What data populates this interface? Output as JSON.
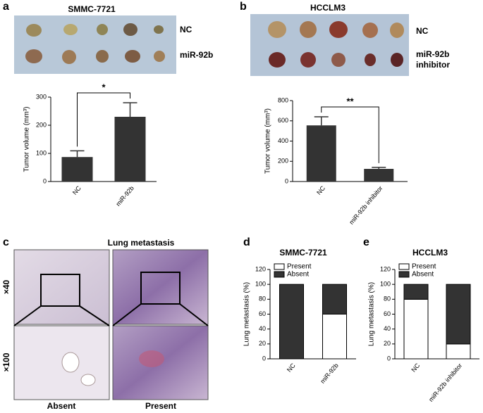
{
  "figure": {
    "panel_letters": [
      "a",
      "b",
      "c",
      "d",
      "e"
    ],
    "photo_a_labels": [
      "NC",
      "miR-92b"
    ],
    "photo_b_labels": [
      [
        "NC"
      ],
      [
        "miR-92b",
        "inhibitor"
      ]
    ],
    "histology_title": "Lung metastasis",
    "magnifications": [
      "×40",
      "×100"
    ],
    "histology_labels": [
      "Absent",
      "Present"
    ]
  },
  "chart_data": [
    {
      "type": "bar",
      "title": "SMMC-7721",
      "y_label": "Tumor volume (mm³)",
      "categories": [
        "NC",
        "miR-92b"
      ],
      "values": [
        87,
        230
      ],
      "errors": [
        22,
        50
      ],
      "color": "#333333",
      "ylim": [
        0,
        300
      ],
      "yticks": [
        0,
        100,
        200,
        300
      ],
      "significance": "*"
    },
    {
      "type": "bar",
      "title": "HCCLM3",
      "y_label": "Tumor volume (mm³)",
      "categories": [
        "NC",
        "miR-92b inhibitor"
      ],
      "values": [
        555,
        125
      ],
      "errors": [
        85,
        15
      ],
      "color": "#333333",
      "ylim": [
        0,
        800
      ],
      "yticks": [
        0,
        200,
        400,
        600,
        800
      ],
      "significance": "**"
    },
    {
      "type": "stacked_bar",
      "title": "SMMC-7721",
      "y_label": "Lung metastasis (%)",
      "categories": [
        "NC",
        "miR-92b"
      ],
      "series": [
        {
          "name": "Present",
          "color": "#ffffff",
          "values": [
            0,
            60
          ]
        },
        {
          "name": "Absent",
          "color": "#333333",
          "values": [
            100,
            40
          ]
        }
      ],
      "ylim": [
        0,
        120
      ],
      "yticks": [
        0,
        20,
        40,
        60,
        80,
        100,
        120
      ],
      "legend": "upper-left"
    },
    {
      "type": "stacked_bar",
      "title": "HCCLM3",
      "y_label": "Lung metastasis (%)",
      "categories": [
        "NC",
        "miR-92b inhibitor"
      ],
      "series": [
        {
          "name": "Present",
          "color": "#ffffff",
          "values": [
            80,
            20
          ]
        },
        {
          "name": "Absent",
          "color": "#333333",
          "values": [
            20,
            80
          ]
        }
      ],
      "ylim": [
        0,
        120
      ],
      "yticks": [
        0,
        20,
        40,
        60,
        80,
        100,
        120
      ],
      "legend": "upper-left"
    }
  ]
}
